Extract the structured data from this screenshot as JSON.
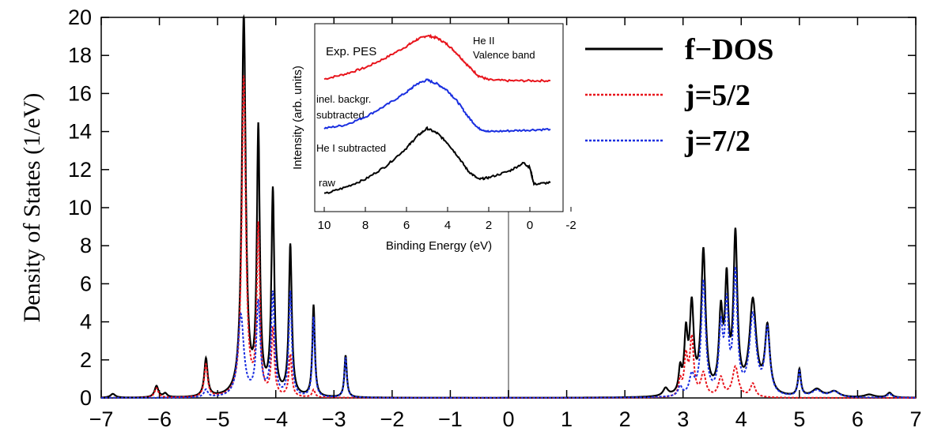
{
  "chart_data": [
    {
      "type": "line",
      "ylabel": "Density of States (1/eV)",
      "xlabel": "",
      "xlim": [
        -7,
        7
      ],
      "ylim": [
        0,
        20
      ],
      "x_ticks": [
        "−7",
        "−6",
        "−5",
        "−4",
        "−3",
        "−2",
        "−1",
        "0",
        "1",
        "2",
        "3",
        "4",
        "5",
        "6",
        "7"
      ],
      "y_ticks": [
        "0",
        "2",
        "4",
        "6",
        "8",
        "10",
        "12",
        "14",
        "16",
        "18",
        "20"
      ],
      "vertical_line_x": 0,
      "legend_position": "top-right",
      "series": [
        {
          "name": "f−DOS",
          "color": "#000000",
          "style": "solid",
          "peaks": [
            {
              "x": -6.8,
              "y": 0.2,
              "w": 0.05
            },
            {
              "x": -6.05,
              "y": 0.6,
              "w": 0.04
            },
            {
              "x": -5.9,
              "y": 0.2,
              "w": 0.04
            },
            {
              "x": -5.2,
              "y": 2.0,
              "w": 0.035
            },
            {
              "x": -4.55,
              "y": 20.0,
              "w": 0.04
            },
            {
              "x": -4.3,
              "y": 13.8,
              "w": 0.03
            },
            {
              "x": -4.05,
              "y": 10.7,
              "w": 0.03
            },
            {
              "x": -3.75,
              "y": 7.9,
              "w": 0.03
            },
            {
              "x": -3.35,
              "y": 4.8,
              "w": 0.025
            },
            {
              "x": -2.8,
              "y": 2.2,
              "w": 0.025
            },
            {
              "x": 2.7,
              "y": 0.4,
              "w": 0.05
            },
            {
              "x": 2.95,
              "y": 1.2,
              "w": 0.03
            },
            {
              "x": 3.05,
              "y": 3.0,
              "w": 0.035
            },
            {
              "x": 3.15,
              "y": 4.5,
              "w": 0.04
            },
            {
              "x": 3.35,
              "y": 7.5,
              "w": 0.045
            },
            {
              "x": 3.65,
              "y": 4.0,
              "w": 0.04
            },
            {
              "x": 3.75,
              "y": 5.5,
              "w": 0.035
            },
            {
              "x": 3.9,
              "y": 8.2,
              "w": 0.04
            },
            {
              "x": 4.2,
              "y": 4.9,
              "w": 0.07
            },
            {
              "x": 4.45,
              "y": 3.5,
              "w": 0.05
            },
            {
              "x": 5.0,
              "y": 1.4,
              "w": 0.03
            },
            {
              "x": 5.3,
              "y": 0.4,
              "w": 0.1
            },
            {
              "x": 5.6,
              "y": 0.3,
              "w": 0.1
            },
            {
              "x": 6.2,
              "y": 0.15,
              "w": 0.1
            },
            {
              "x": 6.55,
              "y": 0.25,
              "w": 0.05
            }
          ]
        },
        {
          "name": "j=5/2",
          "color": "#e8141c",
          "style": "dashed",
          "peaks": [
            {
              "x": -6.05,
              "y": 0.5,
              "w": 0.04
            },
            {
              "x": -5.2,
              "y": 1.7,
              "w": 0.035
            },
            {
              "x": -4.55,
              "y": 16.8,
              "w": 0.04
            },
            {
              "x": -4.3,
              "y": 8.8,
              "w": 0.03
            },
            {
              "x": -4.05,
              "y": 3.5,
              "w": 0.03
            },
            {
              "x": -3.75,
              "y": 2.2,
              "w": 0.03
            },
            {
              "x": -3.35,
              "y": 0.4,
              "w": 0.03
            },
            {
              "x": 2.95,
              "y": 0.8,
              "w": 0.03
            },
            {
              "x": 3.05,
              "y": 2.0,
              "w": 0.035
            },
            {
              "x": 3.15,
              "y": 3.0,
              "w": 0.04
            },
            {
              "x": 3.35,
              "y": 1.2,
              "w": 0.05
            },
            {
              "x": 3.65,
              "y": 1.0,
              "w": 0.05
            },
            {
              "x": 3.9,
              "y": 1.6,
              "w": 0.06
            },
            {
              "x": 4.2,
              "y": 0.7,
              "w": 0.05
            }
          ]
        },
        {
          "name": "j=7/2",
          "color": "#1a2fe0",
          "style": "dashed",
          "peaks": [
            {
              "x": -5.2,
              "y": 0.4,
              "w": 0.04
            },
            {
              "x": -4.6,
              "y": 4.3,
              "w": 0.06
            },
            {
              "x": -4.3,
              "y": 4.9,
              "w": 0.04
            },
            {
              "x": -4.05,
              "y": 5.4,
              "w": 0.035
            },
            {
              "x": -3.75,
              "y": 5.5,
              "w": 0.03
            },
            {
              "x": -3.35,
              "y": 4.2,
              "w": 0.025
            },
            {
              "x": -2.8,
              "y": 2.1,
              "w": 0.025
            },
            {
              "x": 2.95,
              "y": 0.5,
              "w": 0.04
            },
            {
              "x": 3.15,
              "y": 1.0,
              "w": 0.05
            },
            {
              "x": 3.35,
              "y": 6.0,
              "w": 0.045
            },
            {
              "x": 3.65,
              "y": 3.4,
              "w": 0.04
            },
            {
              "x": 3.75,
              "y": 4.4,
              "w": 0.035
            },
            {
              "x": 3.9,
              "y": 6.3,
              "w": 0.04
            },
            {
              "x": 4.2,
              "y": 4.2,
              "w": 0.07
            },
            {
              "x": 4.45,
              "y": 3.4,
              "w": 0.05
            },
            {
              "x": 5.0,
              "y": 1.3,
              "w": 0.03
            },
            {
              "x": 5.3,
              "y": 0.35,
              "w": 0.1
            },
            {
              "x": 5.6,
              "y": 0.3,
              "w": 0.1
            },
            {
              "x": 6.55,
              "y": 0.2,
              "w": 0.05
            }
          ]
        }
      ]
    },
    {
      "type": "line",
      "title": "Exp. PES",
      "xlabel": "Binding Energy (eV)",
      "ylabel": "Intensity (arb. units)",
      "xlim": [
        10,
        -2
      ],
      "ylim": [
        0,
        10
      ],
      "x_ticks": [
        "10",
        "8",
        "6",
        "4",
        "2",
        "0",
        "-2"
      ],
      "annotations": [
        "He II",
        "Valence band",
        "inel. backgr.",
        "subtracted",
        "He I subtracted",
        "raw"
      ],
      "series": [
        {
          "color": "#e8141c",
          "points": [
            [
              10,
              7.3
            ],
            [
              9,
              7.6
            ],
            [
              8,
              8.0
            ],
            [
              7,
              8.6
            ],
            [
              6,
              9.3
            ],
            [
              5.5,
              9.7
            ],
            [
              5,
              9.95
            ],
            [
              4.5,
              9.8
            ],
            [
              4,
              9.4
            ],
            [
              3.5,
              8.8
            ],
            [
              3,
              8.1
            ],
            [
              2.5,
              7.5
            ],
            [
              2,
              7.25
            ],
            [
              1,
              7.2
            ],
            [
              0,
              7.2
            ],
            [
              -1,
              7.2
            ]
          ]
        },
        {
          "color": "#1a2fe0",
          "points": [
            [
              10,
              4.3
            ],
            [
              9,
              4.5
            ],
            [
              8,
              5.0
            ],
            [
              7,
              5.7
            ],
            [
              6,
              6.5
            ],
            [
              5.5,
              7.0
            ],
            [
              5,
              7.25
            ],
            [
              4.5,
              7.0
            ],
            [
              4,
              6.6
            ],
            [
              3.5,
              5.9
            ],
            [
              3,
              5.0
            ],
            [
              2.5,
              4.3
            ],
            [
              2,
              4.1
            ],
            [
              1,
              4.15
            ],
            [
              0,
              4.2
            ],
            [
              -1,
              4.25
            ]
          ]
        },
        {
          "color": "#000000",
          "points": [
            [
              10,
              0.3
            ],
            [
              9,
              0.7
            ],
            [
              8,
              1.2
            ],
            [
              7,
              2.0
            ],
            [
              6,
              3.1
            ],
            [
              5.5,
              3.8
            ],
            [
              5,
              4.3
            ],
            [
              4.5,
              4.0
            ],
            [
              4,
              3.4
            ],
            [
              3.5,
              2.6
            ],
            [
              3,
              1.7
            ],
            [
              2.5,
              1.2
            ],
            [
              2,
              1.3
            ],
            [
              1,
              1.7
            ],
            [
              0.3,
              2.2
            ],
            [
              0,
              1.9
            ],
            [
              -0.2,
              0.9
            ],
            [
              -1,
              1.0
            ]
          ]
        }
      ]
    }
  ]
}
